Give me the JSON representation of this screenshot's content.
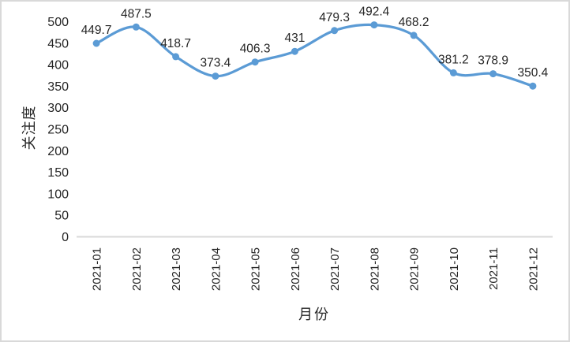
{
  "chart_data": {
    "type": "line",
    "title": "",
    "xlabel": "月份",
    "ylabel": "关注度",
    "categories": [
      "2021-01",
      "2021-02",
      "2021-03",
      "2021-04",
      "2021-05",
      "2021-06",
      "2021-07",
      "2021-08",
      "2021-09",
      "2021-10",
      "2021-11",
      "2021-12"
    ],
    "series": [
      {
        "name": "关注度",
        "values": [
          449.7,
          487.5,
          418.7,
          373.4,
          406.3,
          431,
          479.3,
          492.4,
          468.2,
          381.2,
          378.9,
          350.4
        ],
        "labels": [
          "449.7",
          "487.5",
          "418.7",
          "373.4",
          "406.3",
          "431",
          "479.3",
          "492.4",
          "468.2",
          "381.2",
          "378.9",
          "350.4"
        ],
        "color": "#5B9BD5"
      }
    ],
    "ylim": [
      0,
      500
    ],
    "ytick_step": 50,
    "yticks": [
      0,
      50,
      100,
      150,
      200,
      250,
      300,
      350,
      400,
      450,
      500
    ],
    "grid": false,
    "legend": "none",
    "smooth": true,
    "markers": true,
    "data_labels_position": "above",
    "x_tick_rotation": -90
  },
  "colors": {
    "line": "#5B9BD5",
    "marker": "#5B9BD5",
    "axis_line": "#D9D9D9",
    "text": "#262626",
    "border": "#D9D9D9",
    "background": "#FFFFFF"
  }
}
